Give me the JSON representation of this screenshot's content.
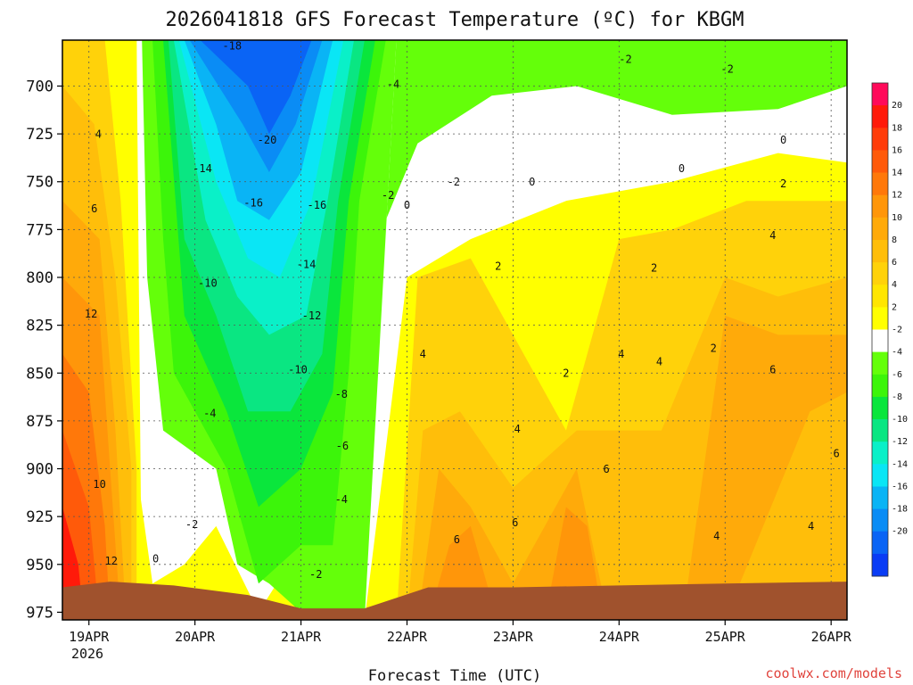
{
  "chart_data": {
    "type": "heatmap",
    "title": "2026041818 GFS Forecast Temperature (ºC) for KBGM",
    "xlabel": "Forecast Time (UTC)",
    "ylabel": "",
    "credit": "coolwx.com/models",
    "x_ticks": [
      "19APR",
      "20APR",
      "21APR",
      "22APR",
      "23APR",
      "24APR",
      "25APR",
      "26APR"
    ],
    "x_year_label": "2026",
    "x_range_days": [
      -0.25,
      7.15
    ],
    "y_ticks": [
      "700",
      "725",
      "750",
      "775",
      "800",
      "825",
      "850",
      "875",
      "900",
      "925",
      "950",
      "975"
    ],
    "y_range_hpa": [
      676,
      979
    ],
    "colorbar": {
      "levels": [
        20,
        18,
        16,
        14,
        12,
        10,
        8,
        6,
        4,
        2,
        -2,
        -4,
        -6,
        -8,
        -10,
        -12,
        -14,
        -16,
        -18,
        -20
      ],
      "labels": [
        "20",
        "18",
        "16",
        "14",
        "12",
        "10",
        "8",
        "6",
        "4",
        "2",
        "-2",
        "-4",
        "-6",
        "-8",
        "-10",
        "-12",
        "-14",
        "-16",
        "-18",
        "-20"
      ],
      "colors": [
        "#ff0a5a",
        "#ff1a0a",
        "#ff3c0a",
        "#ff5a0a",
        "#ff780a",
        "#ff960a",
        "#ffaa0a",
        "#ffbe0a",
        "#ffd20a",
        "#ffe600",
        "#ffff00",
        "#ffffff",
        "#64ff0a",
        "#3cf50a",
        "#0ae63c",
        "#0ae682",
        "#0af0c8",
        "#0ae6f5",
        "#0ab4f5",
        "#0a8cf5",
        "#0a64f5",
        "#0a3cf5"
      ]
    },
    "regions": [
      {
        "name": "warm-bottom-left",
        "value": 14,
        "poly": [
          [
            -0.25,
            979
          ],
          [
            -0.25,
            676
          ],
          [
            0.1,
            720
          ],
          [
            0.35,
            800
          ],
          [
            0.45,
            900
          ],
          [
            0.5,
            979
          ]
        ]
      },
      {
        "name": "cold-core-21apr",
        "value": -18,
        "poly": [
          [
            0.9,
            676
          ],
          [
            1.9,
            676
          ],
          [
            2.1,
            740
          ],
          [
            1.7,
            820
          ],
          [
            1.3,
            760
          ]
        ]
      },
      {
        "name": "warm-east",
        "value": 5,
        "poly": [
          [
            2.6,
            979
          ],
          [
            3.0,
            800
          ],
          [
            3.6,
            790
          ],
          [
            4.5,
            780
          ],
          [
            5.5,
            760
          ],
          [
            6.5,
            750
          ],
          [
            7.15,
            745
          ],
          [
            7.15,
            979
          ]
        ]
      }
    ],
    "contour_labels": [
      {
        "text": "-18",
        "x": 1.35,
        "p": 681
      },
      {
        "text": "-20",
        "x": 1.68,
        "p": 730
      },
      {
        "text": "-14",
        "x": 1.07,
        "p": 745
      },
      {
        "text": "-16",
        "x": 1.55,
        "p": 763
      },
      {
        "text": "-16",
        "x": 2.15,
        "p": 764
      },
      {
        "text": "-14",
        "x": 2.05,
        "p": 795
      },
      {
        "text": "-12",
        "x": 2.1,
        "p": 822
      },
      {
        "text": "-10",
        "x": 1.12,
        "p": 805
      },
      {
        "text": "-10",
        "x": 1.97,
        "p": 850
      },
      {
        "text": "-8",
        "x": 2.38,
        "p": 863
      },
      {
        "text": "-6",
        "x": 2.39,
        "p": 890
      },
      {
        "text": "-4",
        "x": 1.14,
        "p": 873
      },
      {
        "text": "-4",
        "x": 2.38,
        "p": 918
      },
      {
        "text": "-4",
        "x": 2.87,
        "p": 701
      },
      {
        "text": "-2",
        "x": 0.97,
        "p": 931
      },
      {
        "text": "-2",
        "x": 2.14,
        "p": 957
      },
      {
        "text": "-2",
        "x": 2.82,
        "p": 759
      },
      {
        "text": "-2",
        "x": 3.44,
        "p": 752
      },
      {
        "text": "-2",
        "x": 5.06,
        "p": 688
      },
      {
        "text": "-2",
        "x": 6.02,
        "p": 693
      },
      {
        "text": "0",
        "x": 0.63,
        "p": 949
      },
      {
        "text": "0",
        "x": 3.0,
        "p": 764
      },
      {
        "text": "0",
        "x": 4.18,
        "p": 752
      },
      {
        "text": "0",
        "x": 5.59,
        "p": 745
      },
      {
        "text": "0",
        "x": 6.55,
        "p": 730
      },
      {
        "text": "2",
        "x": 3.86,
        "p": 796
      },
      {
        "text": "2",
        "x": 4.5,
        "p": 852
      },
      {
        "text": "2",
        "x": 5.33,
        "p": 797
      },
      {
        "text": "2",
        "x": 5.89,
        "p": 839
      },
      {
        "text": "2",
        "x": 6.55,
        "p": 753
      },
      {
        "text": "4",
        "x": 0.09,
        "p": 727
      },
      {
        "text": "4",
        "x": 3.15,
        "p": 842
      },
      {
        "text": "4",
        "x": 4.04,
        "p": 881
      },
      {
        "text": "4",
        "x": 5.02,
        "p": 842
      },
      {
        "text": "4",
        "x": 5.38,
        "p": 846
      },
      {
        "text": "4",
        "x": 5.92,
        "p": 937
      },
      {
        "text": "4",
        "x": 6.45,
        "p": 780
      },
      {
        "text": "4",
        "x": 6.81,
        "p": 932
      },
      {
        "text": "6",
        "x": 0.05,
        "p": 766
      },
      {
        "text": "6",
        "x": 3.47,
        "p": 939
      },
      {
        "text": "6",
        "x": 4.02,
        "p": 930
      },
      {
        "text": "6",
        "x": 4.88,
        "p": 902
      },
      {
        "text": "6",
        "x": 6.45,
        "p": 850
      },
      {
        "text": "6",
        "x": 7.05,
        "p": 894
      },
      {
        "text": "10",
        "x": 0.1,
        "p": 910
      },
      {
        "text": "12",
        "x": 0.02,
        "p": 821
      },
      {
        "text": "12",
        "x": 0.21,
        "p": 950
      }
    ]
  }
}
